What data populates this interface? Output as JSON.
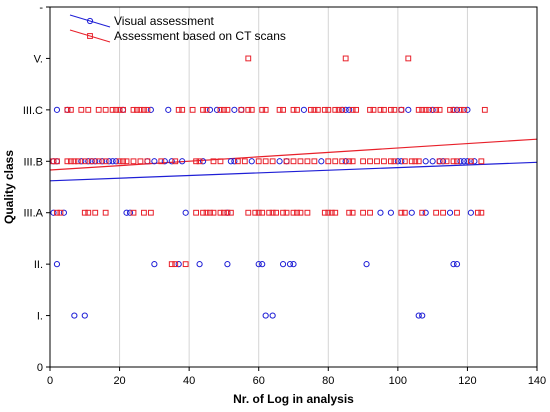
{
  "chart_data": {
    "type": "scatter",
    "xlabel": "Nr. of Log in analysis",
    "ylabel": "Quality class",
    "xlim": [
      0,
      140
    ],
    "ylim": [
      0,
      7
    ],
    "x_ticks": [
      0,
      20,
      40,
      60,
      80,
      100,
      120,
      140
    ],
    "y_ticks": [
      0,
      1,
      2,
      3,
      4,
      5,
      6,
      7
    ],
    "y_tick_labels": [
      "0",
      "I.",
      "II.",
      "III.A",
      "III.B",
      "III.C",
      "V.",
      "-"
    ],
    "grid": true,
    "legend_position": "top-left",
    "series": [
      {
        "name": "Visual assessment",
        "color": "#1f1fd6",
        "marker": "circle",
        "trend": {
          "start": [
            0,
            3.62
          ],
          "end": [
            140,
            3.98
          ]
        },
        "points": [
          {
            "y": 1,
            "x": [
              7,
              10,
              62,
              64,
              106,
              107
            ]
          },
          {
            "y": 2,
            "x": [
              2,
              30,
              37,
              43,
              51,
              60,
              61,
              67,
              69,
              70,
              91,
              116,
              117
            ]
          },
          {
            "y": 3,
            "x": [
              1,
              4,
              22,
              23,
              39,
              51,
              95,
              98,
              104,
              108,
              115,
              121
            ]
          },
          {
            "y": 4,
            "x": [
              1,
              2,
              9,
              11,
              12,
              13,
              15,
              17,
              18,
              19,
              28,
              30,
              33,
              35,
              38,
              44,
              52,
              53,
              58,
              66,
              68,
              78,
              85,
              100,
              101,
              108,
              110,
              112,
              113,
              118,
              119,
              120,
              122
            ]
          },
          {
            "y": 5,
            "x": [
              2,
              5,
              21,
              29,
              34,
              46,
              48,
              53,
              55,
              73,
              84,
              85,
              86,
              101,
              103,
              110,
              116,
              117,
              120
            ]
          }
        ]
      },
      {
        "name": "Assessment based on CT scans",
        "color": "#e8202a",
        "marker": "square",
        "trend": {
          "start": [
            0,
            3.83
          ],
          "end": [
            140,
            4.43
          ]
        },
        "points": [
          {
            "y": 2,
            "x": [
              35,
              36,
              39
            ]
          },
          {
            "y": 3,
            "x": [
              2,
              3,
              10,
              11,
              13,
              16,
              24,
              27,
              29,
              42,
              44,
              45,
              46,
              47,
              49,
              50,
              51,
              52,
              57,
              59,
              60,
              61,
              63,
              64,
              65,
              67,
              68,
              70,
              71,
              72,
              74,
              79,
              80,
              81,
              82,
              86,
              87,
              90,
              92,
              101,
              102,
              107,
              111,
              113,
              117,
              123,
              124
            ]
          },
          {
            "y": 4,
            "x": [
              1,
              2,
              5,
              6,
              7,
              8,
              10,
              12,
              14,
              16,
              20,
              21,
              22,
              24,
              26,
              28,
              32,
              36,
              42,
              43,
              47,
              49,
              54,
              56,
              60,
              62,
              64,
              68,
              70,
              72,
              74,
              76,
              80,
              82,
              84,
              86,
              87,
              90,
              92,
              94,
              96,
              98,
              99,
              102,
              104,
              105,
              106,
              112,
              114,
              116,
              117,
              121,
              124
            ]
          },
          {
            "y": 5,
            "x": [
              5,
              6,
              9,
              11,
              14,
              16,
              18,
              19,
              20,
              21,
              24,
              25,
              26,
              27,
              28,
              37,
              38,
              41,
              44,
              45,
              49,
              50,
              51,
              55,
              57,
              58,
              61,
              62,
              66,
              67,
              70,
              71,
              75,
              76,
              77,
              79,
              80,
              82,
              83,
              84,
              87,
              88,
              92,
              93,
              95,
              96,
              98,
              99,
              101,
              106,
              107,
              108,
              109,
              111,
              112,
              115,
              116,
              118,
              119,
              125
            ]
          },
          {
            "y": 6,
            "x": [
              57,
              85,
              103
            ]
          }
        ]
      }
    ]
  }
}
